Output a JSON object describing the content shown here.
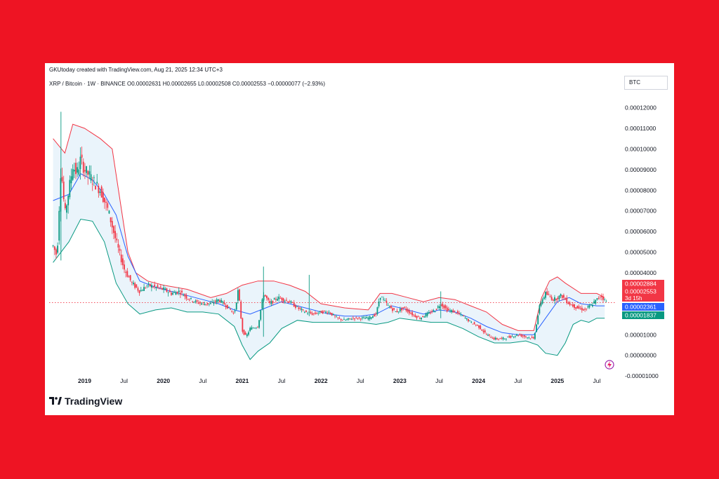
{
  "header": {
    "created_by": "GKUtoday created with TradingView.com, Aug 21, 2025 12:34 UTC+3",
    "legend": "XRP / Bitcoin · 1W · BINANCE   O0.00002631  H0.00002655  L0.00002508  C0.00002553  −0.00000077 (−2.93%)",
    "currency": "BTC"
  },
  "footer": {
    "brand": "TradingView"
  },
  "colors": {
    "background": "#ee1423",
    "up_candle": "#089981",
    "down_candle": "#f23645",
    "upper_band": "#f23645",
    "basis": "#2962ff",
    "lower_band": "#089981",
    "band_fill": "#eaf4fb"
  },
  "chart_data": {
    "type": "candlestick",
    "symbol": "XRP / Bitcoin",
    "interval": "1W",
    "exchange": "BINANCE",
    "indicator": "Bollinger Bands",
    "y_ticks": [
      "0.00012000",
      "0.00011000",
      "0.00010000",
      "0.00009000",
      "0.00008000",
      "0.00007000",
      "0.00006000",
      "0.00005000",
      "0.00004000",
      "0.00003000",
      "0.00002000",
      "0.00001000",
      "0.00000000",
      "-0.00001000"
    ],
    "ylim": [
      -1.2e-05,
      0.000128
    ],
    "x_ticks": [
      "2019",
      "Jul",
      "2020",
      "Jul",
      "2021",
      "Jul",
      "2022",
      "Jul",
      "2023",
      "Jul",
      "2024",
      "Jul",
      "2025",
      "Jul"
    ],
    "x_tick_positions": [
      2019.0,
      2019.5,
      2020.0,
      2020.5,
      2021.0,
      2021.5,
      2022.0,
      2022.5,
      2023.0,
      2023.5,
      2024.0,
      2024.5,
      2025.0,
      2025.5
    ],
    "xlim": [
      2018.55,
      2025.75
    ],
    "price_points": [
      [
        2018.6,
        5.3e-05
      ],
      [
        2018.65,
        4.8e-05
      ],
      [
        2018.7,
        9.2e-05
      ],
      [
        2018.75,
        6.8e-05
      ],
      [
        2018.8,
        8e-05
      ],
      [
        2018.85,
        9.2e-05
      ],
      [
        2018.9,
        8.8e-05
      ],
      [
        2018.95,
        9.5e-05
      ],
      [
        2019.0,
        9e-05
      ],
      [
        2019.1,
        8.5e-05
      ],
      [
        2019.2,
        8e-05
      ],
      [
        2019.3,
        7e-05
      ],
      [
        2019.4,
        5.5e-05
      ],
      [
        2019.5,
        4.2e-05
      ],
      [
        2019.6,
        3.5e-05
      ],
      [
        2019.7,
        3.1e-05
      ],
      [
        2019.8,
        3.4e-05
      ],
      [
        2019.9,
        3.3e-05
      ],
      [
        2020.0,
        3.2e-05
      ],
      [
        2020.1,
        3e-05
      ],
      [
        2020.2,
        3.1e-05
      ],
      [
        2020.3,
        2.8e-05
      ],
      [
        2020.4,
        2.6e-05
      ],
      [
        2020.5,
        2.5e-05
      ],
      [
        2020.6,
        2.5e-05
      ],
      [
        2020.7,
        2.7e-05
      ],
      [
        2020.8,
        2.4e-05
      ],
      [
        2020.9,
        2e-05
      ],
      [
        2020.95,
        3.2e-05
      ],
      [
        2021.0,
        1.2e-05
      ],
      [
        2021.05,
        9e-06
      ],
      [
        2021.1,
        1.3e-05
      ],
      [
        2021.2,
        1.4e-05
      ],
      [
        2021.27,
        3e-05
      ],
      [
        2021.35,
        2.5e-05
      ],
      [
        2021.45,
        2.8e-05
      ],
      [
        2021.6,
        2.6e-05
      ],
      [
        2021.7,
        2.3e-05
      ],
      [
        2021.8,
        2.1e-05
      ],
      [
        2021.9,
        2e-05
      ],
      [
        2022.0,
        2.1e-05
      ],
      [
        2022.1,
        2.1e-05
      ],
      [
        2022.2,
        1.8e-05
      ],
      [
        2022.3,
        1.7e-05
      ],
      [
        2022.4,
        1.8e-05
      ],
      [
        2022.5,
        1.8e-05
      ],
      [
        2022.6,
        1.8e-05
      ],
      [
        2022.7,
        2e-05
      ],
      [
        2022.75,
        2.9e-05
      ],
      [
        2022.85,
        2.4e-05
      ],
      [
        2022.95,
        2.1e-05
      ],
      [
        2023.05,
        2.3e-05
      ],
      [
        2023.15,
        2e-05
      ],
      [
        2023.25,
        1.8e-05
      ],
      [
        2023.35,
        2e-05
      ],
      [
        2023.45,
        2.2e-05
      ],
      [
        2023.52,
        2.5e-05
      ],
      [
        2023.6,
        2.2e-05
      ],
      [
        2023.7,
        2.1e-05
      ],
      [
        2023.8,
        1.9e-05
      ],
      [
        2023.9,
        1.6e-05
      ],
      [
        2024.0,
        1.4e-05
      ],
      [
        2024.1,
        1e-05
      ],
      [
        2024.2,
        8e-06
      ],
      [
        2024.3,
        8e-06
      ],
      [
        2024.4,
        9e-06
      ],
      [
        2024.5,
        1e-05
      ],
      [
        2024.6,
        9e-06
      ],
      [
        2024.7,
        8e-06
      ],
      [
        2024.78,
        2.5e-05
      ],
      [
        2024.85,
        3e-05
      ],
      [
        2024.95,
        2.7e-05
      ],
      [
        2025.05,
        2.9e-05
      ],
      [
        2025.15,
        2.5e-05
      ],
      [
        2025.25,
        2.3e-05
      ],
      [
        2025.35,
        2.2e-05
      ],
      [
        2025.45,
        2.5e-05
      ],
      [
        2025.55,
        2.9e-05
      ],
      [
        2025.62,
        2.6e-05
      ]
    ],
    "wicks": [
      [
        2018.7,
        0.000118,
        4.6e-05
      ],
      [
        2021.27,
        4.3e-05,
        9e-06
      ],
      [
        2021.85,
        3.9e-05,
        1.9e-05
      ],
      [
        2023.52,
        3.1e-05,
        1.8e-05
      ]
    ],
    "bands": {
      "upper": [
        [
          2018.6,
          0.000105
        ],
        [
          2018.75,
          9.8e-05
        ],
        [
          2018.85,
          0.000112
        ],
        [
          2019.0,
          0.00011
        ],
        [
          2019.2,
          0.000105
        ],
        [
          2019.35,
          0.0001
        ],
        [
          2019.45,
          7.5e-05
        ],
        [
          2019.55,
          5e-05
        ],
        [
          2019.65,
          4e-05
        ],
        [
          2019.8,
          3.6e-05
        ],
        [
          2020.0,
          3.4e-05
        ],
        [
          2020.3,
          3.2e-05
        ],
        [
          2020.6,
          2.8e-05
        ],
        [
          2020.8,
          3e-05
        ],
        [
          2021.0,
          3.4e-05
        ],
        [
          2021.2,
          3.6e-05
        ],
        [
          2021.4,
          3.6e-05
        ],
        [
          2021.6,
          3.4e-05
        ],
        [
          2021.8,
          3.1e-05
        ],
        [
          2022.0,
          2.5e-05
        ],
        [
          2022.3,
          2.3e-05
        ],
        [
          2022.6,
          2.2e-05
        ],
        [
          2022.75,
          3e-05
        ],
        [
          2022.9,
          3e-05
        ],
        [
          2023.1,
          2.8e-05
        ],
        [
          2023.3,
          2.6e-05
        ],
        [
          2023.5,
          2.8e-05
        ],
        [
          2023.7,
          2.7e-05
        ],
        [
          2023.9,
          2.4e-05
        ],
        [
          2024.1,
          2.1e-05
        ],
        [
          2024.3,
          1.5e-05
        ],
        [
          2024.5,
          1.2e-05
        ],
        [
          2024.7,
          1.2e-05
        ],
        [
          2024.8,
          2.8e-05
        ],
        [
          2024.9,
          3.6e-05
        ],
        [
          2025.0,
          3.8e-05
        ],
        [
          2025.1,
          3.5e-05
        ],
        [
          2025.3,
          3e-05
        ],
        [
          2025.5,
          3e-05
        ],
        [
          2025.6,
          2.8e-05
        ]
      ],
      "basis": [
        [
          2018.6,
          7.5e-05
        ],
        [
          2018.8,
          7.8e-05
        ],
        [
          2018.95,
          8.8e-05
        ],
        [
          2019.1,
          8.5e-05
        ],
        [
          2019.25,
          7.8e-05
        ],
        [
          2019.4,
          6.8e-05
        ],
        [
          2019.55,
          4.8e-05
        ],
        [
          2019.7,
          3.6e-05
        ],
        [
          2019.9,
          3.3e-05
        ],
        [
          2020.1,
          3.1e-05
        ],
        [
          2020.3,
          2.9e-05
        ],
        [
          2020.5,
          2.7e-05
        ],
        [
          2020.7,
          2.5e-05
        ],
        [
          2020.9,
          2.2e-05
        ],
        [
          2021.1,
          2e-05
        ],
        [
          2021.3,
          2.3e-05
        ],
        [
          2021.5,
          2.6e-05
        ],
        [
          2021.7,
          2.4e-05
        ],
        [
          2021.9,
          2.2e-05
        ],
        [
          2022.1,
          2e-05
        ],
        [
          2022.3,
          1.9e-05
        ],
        [
          2022.5,
          1.9e-05
        ],
        [
          2022.7,
          2e-05
        ],
        [
          2022.9,
          2.4e-05
        ],
        [
          2023.1,
          2.2e-05
        ],
        [
          2023.3,
          2e-05
        ],
        [
          2023.5,
          2.2e-05
        ],
        [
          2023.7,
          2.1e-05
        ],
        [
          2023.9,
          1.8e-05
        ],
        [
          2024.1,
          1.4e-05
        ],
        [
          2024.3,
          1.1e-05
        ],
        [
          2024.5,
          1e-05
        ],
        [
          2024.7,
          1e-05
        ],
        [
          2024.85,
          1.8e-05
        ],
        [
          2025.0,
          2.6e-05
        ],
        [
          2025.15,
          2.8e-05
        ],
        [
          2025.3,
          2.5e-05
        ],
        [
          2025.5,
          2.4e-05
        ],
        [
          2025.6,
          2.4e-05
        ]
      ],
      "lower": [
        [
          2018.6,
          4.5e-05
        ],
        [
          2018.8,
          5.5e-05
        ],
        [
          2018.95,
          6.6e-05
        ],
        [
          2019.1,
          6.5e-05
        ],
        [
          2019.25,
          5.5e-05
        ],
        [
          2019.4,
          3.5e-05
        ],
        [
          2019.55,
          2.5e-05
        ],
        [
          2019.7,
          2e-05
        ],
        [
          2019.9,
          2.2e-05
        ],
        [
          2020.1,
          2.3e-05
        ],
        [
          2020.3,
          2.1e-05
        ],
        [
          2020.5,
          2.1e-05
        ],
        [
          2020.7,
          2e-05
        ],
        [
          2020.9,
          1.4e-05
        ],
        [
          2021.0,
          5e-06
        ],
        [
          2021.1,
          -2e-06
        ],
        [
          2021.2,
          2e-06
        ],
        [
          2021.35,
          6e-06
        ],
        [
          2021.5,
          1.3e-05
        ],
        [
          2021.7,
          1.7e-05
        ],
        [
          2021.9,
          1.6e-05
        ],
        [
          2022.1,
          1.6e-05
        ],
        [
          2022.3,
          1.6e-05
        ],
        [
          2022.5,
          1.6e-05
        ],
        [
          2022.7,
          1.5e-05
        ],
        [
          2022.85,
          1.6e-05
        ],
        [
          2023.0,
          1.8e-05
        ],
        [
          2023.2,
          1.7e-05
        ],
        [
          2023.4,
          1.6e-05
        ],
        [
          2023.6,
          1.6e-05
        ],
        [
          2023.8,
          1.3e-05
        ],
        [
          2024.0,
          9e-06
        ],
        [
          2024.2,
          6e-06
        ],
        [
          2024.4,
          6e-06
        ],
        [
          2024.6,
          7e-06
        ],
        [
          2024.75,
          5e-06
        ],
        [
          2024.85,
          1e-06
        ],
        [
          2025.0,
          0.0
        ],
        [
          2025.1,
          6e-06
        ],
        [
          2025.2,
          1.5e-05
        ],
        [
          2025.3,
          1.7e-05
        ],
        [
          2025.4,
          1.6e-05
        ],
        [
          2025.5,
          1.8e-05
        ],
        [
          2025.6,
          1.8e-05
        ]
      ]
    },
    "price_labels": [
      {
        "text": "0.00002884",
        "value": 2.884e-05,
        "color": "#f23645"
      },
      {
        "text": "0.00002553",
        "sub": "3d 15h",
        "value": 2.553e-05,
        "color": "#f23645"
      },
      {
        "text": "0.00002361",
        "value": 2.361e-05,
        "color": "#2962ff"
      },
      {
        "text": "0.00001837",
        "value": 1.837e-05,
        "color": "#089981"
      }
    ],
    "last_price": 2.553e-05
  }
}
